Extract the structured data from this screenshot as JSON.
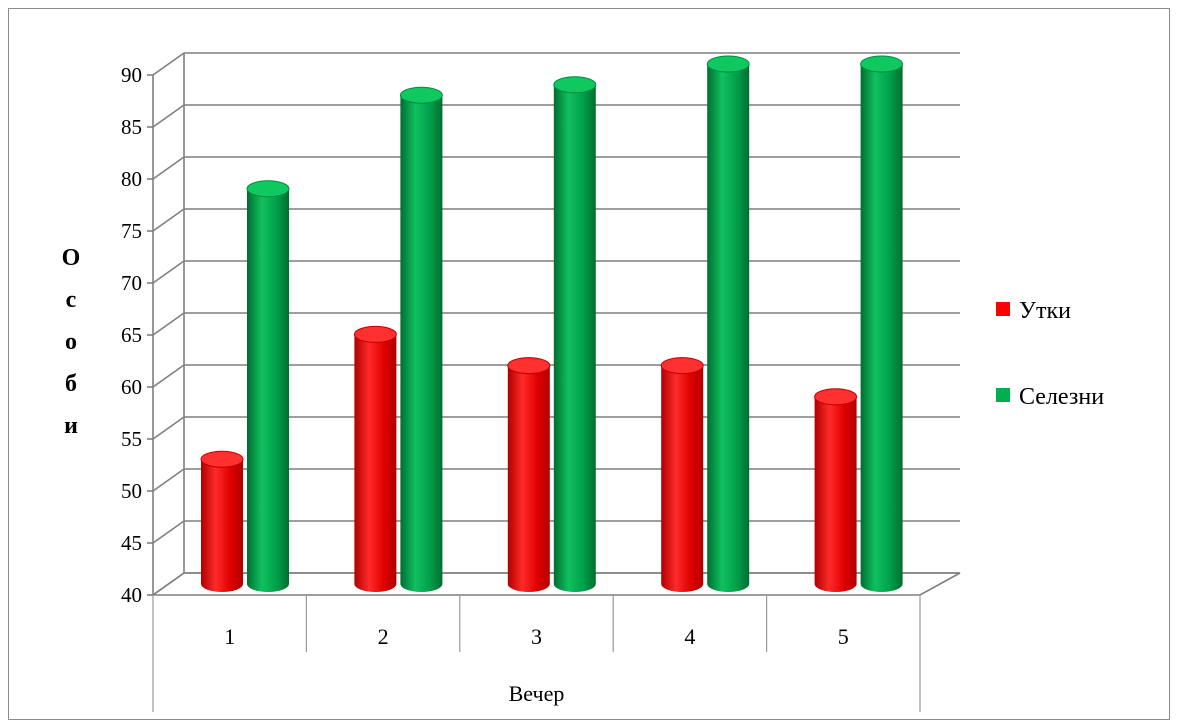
{
  "chart_data": {
    "type": "bar",
    "categories": [
      "1",
      "2",
      "3",
      "4",
      "5"
    ],
    "series": [
      {
        "name": "Утки",
        "values": [
          52,
          64,
          61,
          61,
          58
        ],
        "color": "#ff0000"
      },
      {
        "name": "Селезни",
        "values": [
          78,
          87,
          88,
          90,
          90
        ],
        "color": "#00b050"
      }
    ],
    "yticks": [
      "40",
      "45",
      "50",
      "55",
      "60",
      "65",
      "70",
      "75",
      "80",
      "85",
      "90"
    ],
    "ylim": [
      40,
      90
    ],
    "xlabel": "Вечер",
    "ylabel_letters": [
      "О",
      "с",
      "о",
      "б",
      "и"
    ],
    "grid": true,
    "legend_position": "right",
    "style": "3d-cylinder"
  }
}
